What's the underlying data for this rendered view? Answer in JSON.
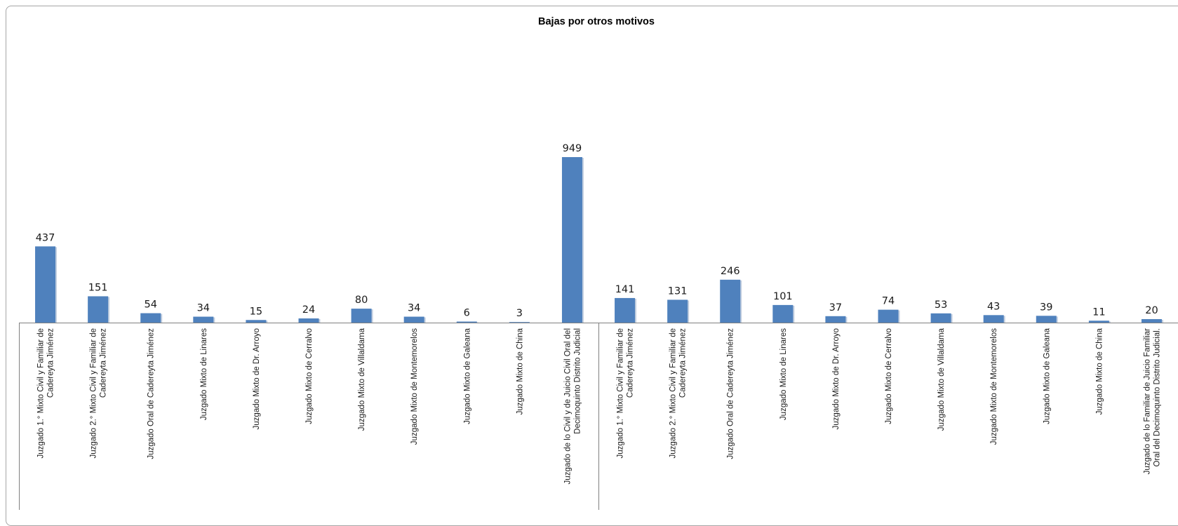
{
  "chart_data": {
    "type": "bar",
    "title": "Bajas por otros motivos",
    "xlabel": "",
    "ylabel": "",
    "ylim": [
      0,
      949
    ],
    "grid": false,
    "legend": "none",
    "bar_color": "#4f81bd",
    "categories": [
      [
        "Juzgado 1.° Mixto Civil y Familiar de",
        "Cadereyta Jiménez"
      ],
      [
        "Juzgado 2.° Mixto Civil y Familiar de",
        "Cadereyta Jiménez"
      ],
      [
        "Juzgado Oral de Cadereyta Jiménez"
      ],
      [
        "Juzgado Mixto de Linares"
      ],
      [
        "Juzgado Mixto de Dr. Arroyo"
      ],
      [
        "Juzgado Mixto de Cerralvo"
      ],
      [
        "Juzgado Mixto de Villaldama"
      ],
      [
        "Juzgado Mixto de Montemorelos"
      ],
      [
        "Juzgado Mixto de Galeana"
      ],
      [
        "Juzgado Mixto de China"
      ],
      [
        "Juzgado de lo Civil y de Juicio Civil Oral del",
        "Decimoquinto Distrito Judicial"
      ],
      [
        "Juzgado 1.° Mixto Civil y Familiar de",
        "Cadereyta Jiménez"
      ],
      [
        "Juzgado 2.° Mixto Civil y Familiar de",
        "Cadereyta Jiménez"
      ],
      [
        "Juzgado Oral de Cadereyta Jiménez"
      ],
      [
        "Juzgado Mixto de Linares"
      ],
      [
        "Juzgado Mixto de Dr. Arroyo"
      ],
      [
        "Juzgado Mixto de Cerralvo"
      ],
      [
        "Juzgado Mixto de Villaldama"
      ],
      [
        "Juzgado Mixto de Montemorelos"
      ],
      [
        "Juzgado Mixto de Galeana"
      ],
      [
        "Juzgado Mixto de China"
      ],
      [
        "Juzgado de lo Familiar de Juicio Familiar",
        "Oral del Decimoquinto Distrito Judicial."
      ]
    ],
    "values": [
      437,
      151,
      54,
      34,
      15,
      24,
      80,
      34,
      6,
      3,
      949,
      141,
      131,
      246,
      101,
      37,
      74,
      53,
      43,
      39,
      11,
      20
    ],
    "group_divider_after_index": 10
  }
}
